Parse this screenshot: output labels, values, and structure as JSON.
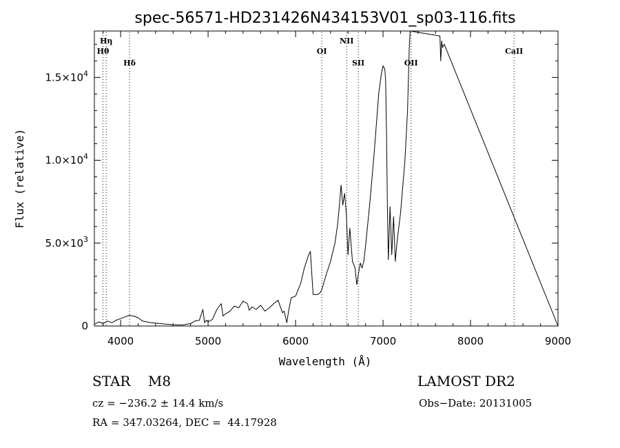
{
  "chart_data": {
    "type": "line",
    "title": "spec-56571-HD231426N434153V01_sp03-116.fits",
    "xlabel": "Wavelength (Å)",
    "ylabel": "Flux (relative)",
    "xlim": [
      3700,
      9000
    ],
    "ylim": [
      0,
      17800
    ],
    "xticks": [
      4000,
      5000,
      6000,
      7000,
      8000,
      9000
    ],
    "xtick_labels": [
      "4000",
      "5000",
      "6000",
      "7000",
      "8000",
      "9000"
    ],
    "yticks": [
      0,
      5000,
      10000,
      15000
    ],
    "ytick_labels": [
      {
        "mant": "0",
        "exp": ""
      },
      {
        "mant": "5.0×10",
        "exp": "3"
      },
      {
        "mant": "1.0×10",
        "exp": "4"
      },
      {
        "mant": "1.5×10",
        "exp": "4"
      }
    ],
    "grid": false,
    "lines": [
      {
        "label": "Hη",
        "x": 3835,
        "row": 0
      },
      {
        "label": "Hθ",
        "x": 3798,
        "row": 1
      },
      {
        "label": "Hδ",
        "x": 4102,
        "row": 2
      },
      {
        "label": "OI",
        "x": 6300,
        "row": 1
      },
      {
        "label": "NII",
        "x": 6584,
        "row": 0
      },
      {
        "label": "SII",
        "x": 6717,
        "row": 2
      },
      {
        "label": "OII",
        "x": 7320,
        "row": 2
      },
      {
        "label": "CaII",
        "x": 8498,
        "row": 1
      }
    ],
    "series": [
      {
        "x": [
          3700,
          3750,
          3800,
          3850,
          3900,
          3950,
          4000,
          4050,
          4100,
          4150,
          4200,
          4250,
          4300,
          4350,
          4400,
          4500,
          4600,
          4700,
          4800,
          4850,
          4900,
          4940,
          4960,
          4980,
          5000,
          5050,
          5100,
          5150,
          5170,
          5190,
          5250,
          5300,
          5350,
          5400,
          5450,
          5470,
          5500,
          5550,
          5600,
          5650,
          5700,
          5750,
          5800,
          5850,
          5870,
          5900,
          5920,
          5950,
          6000,
          6030,
          6060,
          6100,
          6150,
          6170,
          6200,
          6250,
          6280,
          6300,
          6350,
          6400,
          6450,
          6480,
          6500,
          6520,
          6540,
          6560,
          6580,
          6600,
          6620,
          6650,
          6680,
          6700,
          6720,
          6740,
          6760,
          6780,
          6800,
          6850,
          6900,
          6950,
          6980,
          7000,
          7020,
          7030,
          7040,
          7050,
          7060,
          7080,
          7100,
          7120,
          7140,
          7160,
          7200,
          7250,
          7280,
          7300,
          7310,
          7650,
          7660,
          7670,
          7680,
          7700,
          9000
        ],
        "y": [
          100,
          250,
          150,
          300,
          200,
          350,
          450,
          550,
          650,
          600,
          500,
          300,
          250,
          200,
          180,
          120,
          80,
          60,
          150,
          300,
          350,
          1000,
          200,
          350,
          250,
          400,
          1000,
          1350,
          600,
          700,
          900,
          1200,
          1100,
          1500,
          1350,
          950,
          1150,
          1000,
          1250,
          900,
          1100,
          1350,
          1550,
          800,
          900,
          200,
          900,
          1700,
          1800,
          2200,
          2600,
          3500,
          4300,
          4500,
          1900,
          1900,
          2000,
          2200,
          3100,
          3900,
          5000,
          6100,
          7200,
          8500,
          7300,
          8000,
          6800,
          4300,
          5900,
          3900,
          3500,
          2500,
          3200,
          3800,
          3500,
          3900,
          4800,
          7500,
          10500,
          14000,
          15200,
          15700,
          15500,
          14800,
          11500,
          7100,
          4000,
          7200,
          4300,
          6600,
          3900,
          5100,
          6800,
          10000,
          13000,
          16800,
          17800,
          17500,
          16000,
          17200,
          16800,
          17000,
          0
        ]
      }
    ]
  },
  "info": {
    "object": "STAR    M8",
    "cz": "cz = −236.2 ± 14.4 km/s",
    "coords": "RA = 347.03264, DEC =  44.17928",
    "survey": "LAMOST DR2",
    "obsdate": "Obs−Date: 20131005"
  }
}
